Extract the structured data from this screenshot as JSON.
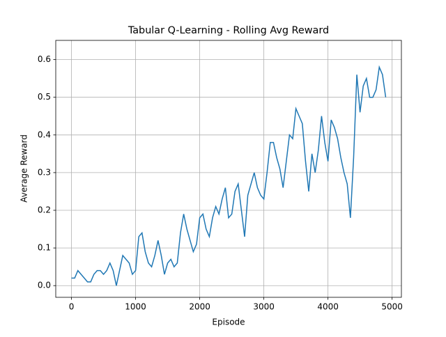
{
  "chart_data": {
    "type": "line",
    "title": "Tabular Q-Learning - Rolling Avg Reward",
    "x_label": "Episode",
    "y_label": "Average Reward",
    "x": [
      0,
      50,
      100,
      150,
      200,
      250,
      300,
      350,
      400,
      450,
      500,
      550,
      600,
      650,
      700,
      750,
      800,
      850,
      900,
      950,
      1000,
      1050,
      1100,
      1150,
      1200,
      1250,
      1300,
      1350,
      1400,
      1450,
      1500,
      1550,
      1600,
      1650,
      1700,
      1750,
      1800,
      1850,
      1900,
      1950,
      2000,
      2050,
      2100,
      2150,
      2200,
      2250,
      2300,
      2350,
      2400,
      2450,
      2500,
      2550,
      2600,
      2650,
      2700,
      2750,
      2800,
      2850,
      2900,
      2950,
      3000,
      3050,
      3100,
      3150,
      3200,
      3250,
      3300,
      3350,
      3400,
      3450,
      3500,
      3550,
      3600,
      3650,
      3700,
      3750,
      3800,
      3850,
      3900,
      3950,
      4000,
      4050,
      4100,
      4150,
      4200,
      4250,
      4300,
      4350,
      4400,
      4450,
      4500,
      4550,
      4600,
      4650,
      4700,
      4750,
      4800,
      4850,
      4900
    ],
    "series": [
      {
        "color": "#1f77b4",
        "values": [
          0.02,
          0.02,
          0.04,
          0.03,
          0.02,
          0.01,
          0.01,
          0.03,
          0.04,
          0.04,
          0.03,
          0.04,
          0.06,
          0.04,
          0.0,
          0.04,
          0.08,
          0.07,
          0.06,
          0.03,
          0.04,
          0.13,
          0.14,
          0.09,
          0.06,
          0.05,
          0.08,
          0.12,
          0.08,
          0.03,
          0.06,
          0.07,
          0.05,
          0.06,
          0.14,
          0.19,
          0.15,
          0.12,
          0.09,
          0.11,
          0.18,
          0.19,
          0.15,
          0.13,
          0.18,
          0.21,
          0.19,
          0.23,
          0.26,
          0.18,
          0.19,
          0.25,
          0.27,
          0.2,
          0.13,
          0.24,
          0.27,
          0.3,
          0.26,
          0.24,
          0.23,
          0.3,
          0.38,
          0.38,
          0.34,
          0.31,
          0.26,
          0.33,
          0.4,
          0.39,
          0.47,
          0.45,
          0.43,
          0.33,
          0.25,
          0.35,
          0.3,
          0.36,
          0.45,
          0.38,
          0.33,
          0.44,
          0.42,
          0.39,
          0.34,
          0.3,
          0.27,
          0.18,
          0.34,
          0.56,
          0.46,
          0.53,
          0.55,
          0.5,
          0.5,
          0.52,
          0.58,
          0.56,
          0.5
        ]
      }
    ],
    "xlim": [
      -245,
      5145
    ],
    "xticks": [
      0,
      1000,
      2000,
      3000,
      4000,
      5000
    ],
    "ylim": [
      -0.031,
      0.651
    ],
    "yticks": [
      {
        "value": 0,
        "label": "0.0"
      },
      0.1,
      0.2,
      0.3,
      0.4,
      0.5,
      0.6
    ],
    "grid": true
  }
}
